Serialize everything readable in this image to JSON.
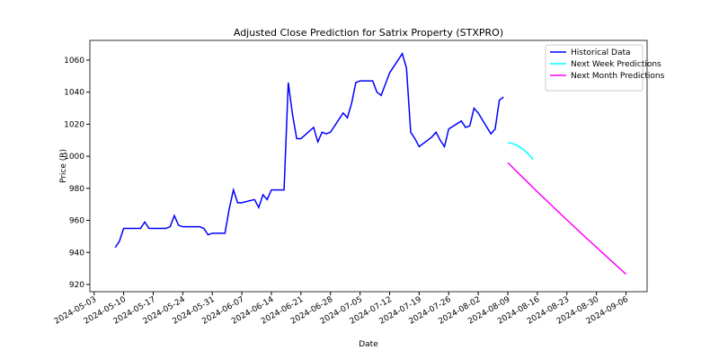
{
  "chart_data": {
    "type": "line",
    "title": "Adjusted Close Prediction for Satrix Property (STXPRO)",
    "x_label": "Date",
    "y_label": "Price (R)",
    "xlim": [
      "2024-05-02",
      "2024-09-11"
    ],
    "xticks": [
      "2024-05-03",
      "2024-05-10",
      "2024-05-17",
      "2024-05-24",
      "2024-05-31",
      "2024-06-07",
      "2024-06-14",
      "2024-06-21",
      "2024-06-28",
      "2024-07-05",
      "2024-07-12",
      "2024-07-19",
      "2024-07-26",
      "2024-08-02",
      "2024-08-09",
      "2024-08-16",
      "2024-08-23",
      "2024-08-30",
      "2024-09-06"
    ],
    "ylim": [
      915.5,
      1072.3
    ],
    "yticks": [
      920,
      940,
      960,
      980,
      1000,
      1020,
      1040,
      1060
    ],
    "legend": "upper right",
    "series": [
      {
        "name": "Historical Data",
        "color": "#0000ff",
        "x": [
          "2024-05-08",
          "2024-05-09",
          "2024-05-10",
          "2024-05-13",
          "2024-05-14",
          "2024-05-15",
          "2024-05-16",
          "2024-05-17",
          "2024-05-20",
          "2024-05-21",
          "2024-05-22",
          "2024-05-23",
          "2024-05-24",
          "2024-05-27",
          "2024-05-28",
          "2024-05-29",
          "2024-05-30",
          "2024-05-31",
          "2024-06-03",
          "2024-06-04",
          "2024-06-05",
          "2024-06-06",
          "2024-06-07",
          "2024-06-10",
          "2024-06-11",
          "2024-06-12",
          "2024-06-13",
          "2024-06-14",
          "2024-06-17",
          "2024-06-18",
          "2024-06-19",
          "2024-06-20",
          "2024-06-21",
          "2024-06-24",
          "2024-06-25",
          "2024-06-26",
          "2024-06-27",
          "2024-06-28",
          "2024-07-01",
          "2024-07-02",
          "2024-07-03",
          "2024-07-04",
          "2024-07-05",
          "2024-07-08",
          "2024-07-09",
          "2024-07-10",
          "2024-07-11",
          "2024-07-12",
          "2024-07-15",
          "2024-07-16",
          "2024-07-17",
          "2024-07-18",
          "2024-07-19",
          "2024-07-22",
          "2024-07-23",
          "2024-07-24",
          "2024-07-25",
          "2024-07-26",
          "2024-07-29",
          "2024-07-30",
          "2024-07-31",
          "2024-08-01",
          "2024-08-02",
          "2024-08-05",
          "2024-08-06",
          "2024-08-07",
          "2024-08-08"
        ],
        "values": [
          943,
          947,
          955,
          955,
          955,
          959,
          955,
          955,
          955,
          956,
          963,
          957,
          956,
          956,
          956,
          955,
          951,
          952,
          952,
          967,
          979,
          971,
          971,
          973,
          968,
          976,
          973,
          979,
          979,
          1046,
          1026,
          1011,
          1011,
          1018,
          1009,
          1015,
          1014,
          1015,
          1027,
          1024,
          1033,
          1046,
          1047,
          1047,
          1040,
          1038,
          1045,
          1052,
          1064,
          1055,
          1015,
          1011,
          1006,
          1012,
          1015,
          1010,
          1006,
          1017,
          1022,
          1018,
          1019,
          1030,
          1027,
          1014,
          1017,
          1035,
          1037
        ]
      },
      {
        "name": "Next Week Predictions",
        "color": "#00ffff",
        "x": [
          "2024-08-09",
          "2024-08-10",
          "2024-08-11",
          "2024-08-12",
          "2024-08-13",
          "2024-08-14",
          "2024-08-15"
        ],
        "values": [
          1008.5,
          1008,
          1007,
          1005.5,
          1003.5,
          1001,
          998
        ]
      },
      {
        "name": "Next Month Predictions",
        "color": "#ff00ff",
        "x": [
          "2024-08-09",
          "2024-08-10",
          "2024-08-11",
          "2024-08-12",
          "2024-08-13",
          "2024-08-14",
          "2024-08-15",
          "2024-08-16",
          "2024-08-17",
          "2024-08-18",
          "2024-08-19",
          "2024-08-20",
          "2024-08-21",
          "2024-08-22",
          "2024-08-23",
          "2024-08-24",
          "2024-08-25",
          "2024-08-26",
          "2024-08-27",
          "2024-08-28",
          "2024-08-29",
          "2024-08-30",
          "2024-08-31",
          "2024-09-01",
          "2024-09-02",
          "2024-09-03",
          "2024-09-04",
          "2024-09-05",
          "2024-09-06"
        ],
        "values": [
          996,
          993.4,
          990.8,
          988.2,
          985.6,
          983,
          980.4,
          977.9,
          975.3,
          972.8,
          970.3,
          967.8,
          965.3,
          962.8,
          960.3,
          957.8,
          955.4,
          952.9,
          950.5,
          948,
          945.6,
          943.2,
          940.8,
          938.4,
          936,
          933.6,
          931.2,
          928.8,
          926.4
        ]
      }
    ]
  }
}
